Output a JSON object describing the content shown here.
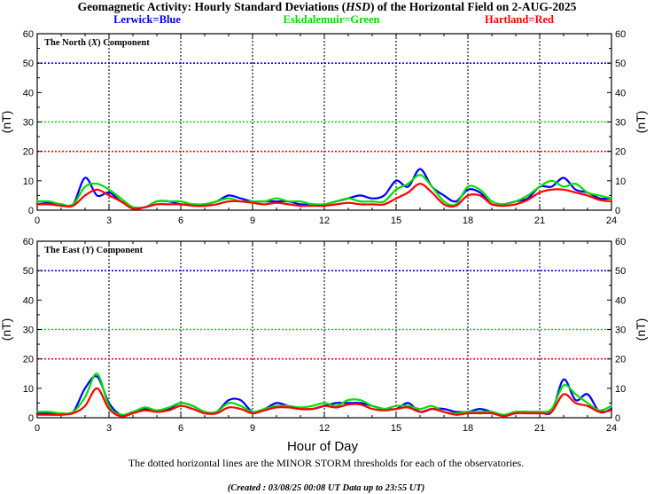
{
  "title": {
    "pre": "Geomagnetic Activity: Hourly Standard Deviations (",
    "ital": "HSD",
    "post": ") of the Horizontal Field on 2-AUG-2025"
  },
  "legend": {
    "lerwick": "Lerwick=Blue",
    "eskdalemuir": "Eskdalemuir=Green",
    "hartland": "Hartland=Red"
  },
  "colors": {
    "lerwick": "#0000ff",
    "eskdalemuir": "#00e000",
    "hartland": "#ff0000"
  },
  "xlabel": "Hour of Day",
  "footnote": "The dotted horizontal lines are the MINOR STORM thresholds for each of the observatories.",
  "created": {
    "prefix": "(Created : ",
    "time": "03/08/25 00:08",
    "mid": "UT  Data up to 23:55",
    "suffix": "UT)"
  },
  "chart_data": [
    {
      "type": "line",
      "panel_title": {
        "pre": "The North (",
        "ital": "X",
        "post": ") Component"
      },
      "ylabel": "(nT)",
      "xlim": [
        0,
        24
      ],
      "ylim": [
        0,
        60
      ],
      "xticks": [
        0,
        3,
        6,
        9,
        12,
        15,
        18,
        21,
        24
      ],
      "yticks": [
        0,
        10,
        20,
        30,
        40,
        50,
        60
      ],
      "thresholds": {
        "Lerwick": 50,
        "Eskdalemuir": 30,
        "Hartland": 20
      },
      "x": [
        0,
        0.5,
        1,
        1.5,
        2,
        2.5,
        3,
        3.5,
        4,
        4.5,
        5,
        5.5,
        6,
        6.5,
        7,
        7.5,
        8,
        8.5,
        9,
        9.5,
        10,
        10.5,
        11,
        11.5,
        12,
        12.5,
        13,
        13.5,
        14,
        14.5,
        15,
        15.5,
        16,
        16.5,
        17,
        17.5,
        18,
        18.5,
        19,
        19.5,
        20,
        20.5,
        21,
        21.5,
        22,
        22.5,
        23,
        23.5,
        24
      ],
      "series": [
        {
          "name": "Lerwick",
          "values": [
            2,
            2.5,
            2,
            2,
            11,
            5,
            6,
            3,
            1,
            1,
            3,
            3,
            2,
            2,
            2,
            3,
            5,
            4,
            3,
            3,
            3,
            3,
            2,
            2,
            2,
            3,
            4,
            5,
            4,
            5,
            10,
            8,
            14,
            8,
            5,
            3,
            7,
            6,
            2,
            2,
            3,
            4,
            8,
            8,
            11,
            7,
            6,
            4,
            4
          ]
        },
        {
          "name": "Eskdalemuir",
          "values": [
            3,
            3,
            2,
            2,
            8,
            9,
            7,
            4,
            1,
            1,
            3,
            3,
            3,
            2,
            2,
            3,
            4,
            3,
            3,
            3,
            4,
            3,
            3,
            2,
            2,
            3,
            4,
            3,
            3,
            3,
            7,
            9,
            12,
            8,
            3,
            2,
            8,
            7,
            3,
            2,
            3,
            5,
            8,
            10,
            8,
            9,
            6,
            5,
            4
          ]
        },
        {
          "name": "Hartland",
          "values": [
            2,
            2,
            1.5,
            1.5,
            5,
            7,
            5,
            3,
            0.5,
            1,
            2,
            2,
            2,
            1.5,
            1.5,
            2,
            3,
            3,
            2.5,
            2,
            2.5,
            2,
            1.5,
            1.5,
            1.5,
            2,
            2.5,
            2,
            2,
            2,
            4,
            6,
            9,
            6,
            2,
            1.5,
            5,
            5,
            2,
            1.5,
            2,
            3.5,
            6,
            7,
            7,
            6,
            5,
            3.5,
            3
          ]
        }
      ]
    },
    {
      "type": "line",
      "panel_title": {
        "pre": "The East (",
        "ital": "Y",
        "post": ") Component"
      },
      "ylabel": "(nT)",
      "xlim": [
        0,
        24
      ],
      "ylim": [
        0,
        60
      ],
      "xticks": [
        0,
        3,
        6,
        9,
        12,
        15,
        18,
        21,
        24
      ],
      "yticks": [
        0,
        10,
        20,
        30,
        40,
        50,
        60
      ],
      "thresholds": {
        "Lerwick": 50,
        "Eskdalemuir": 30,
        "Hartland": 20
      },
      "x": [
        0,
        0.5,
        1,
        1.5,
        2,
        2.5,
        3,
        3.5,
        4,
        4.5,
        5,
        5.5,
        6,
        6.5,
        7,
        7.5,
        8,
        8.5,
        9,
        9.5,
        10,
        10.5,
        11,
        11.5,
        12,
        12.5,
        13,
        13.5,
        14,
        14.5,
        15,
        15.5,
        16,
        16.5,
        17,
        17.5,
        18,
        18.5,
        19,
        19.5,
        20,
        20.5,
        21,
        21.5,
        22,
        22.5,
        23,
        23.5,
        24
      ],
      "series": [
        {
          "name": "Lerwick",
          "values": [
            1.5,
            1.5,
            1.5,
            2,
            10,
            14,
            5,
            1,
            2,
            3,
            2,
            3,
            5,
            4,
            2,
            2,
            6,
            6,
            2,
            3,
            5,
            4,
            3,
            3,
            4,
            5,
            5,
            5,
            4,
            3,
            3,
            5,
            2,
            3,
            3,
            2,
            2,
            3,
            2,
            1,
            2,
            2,
            2,
            2,
            13,
            6,
            8,
            2,
            3
          ]
        },
        {
          "name": "Eskdalemuir",
          "values": [
            2,
            2,
            1.5,
            2,
            7,
            15,
            4,
            1,
            2,
            3.5,
            2.5,
            3.5,
            5,
            4,
            2,
            2,
            5,
            4,
            2,
            3,
            4,
            4,
            3.5,
            4,
            5,
            4,
            6,
            6,
            4,
            3,
            4,
            4,
            3,
            4,
            2,
            1.5,
            2,
            2,
            2,
            1,
            2,
            2,
            2,
            3,
            11,
            8,
            5,
            2.5,
            4
          ]
        },
        {
          "name": "Hartland",
          "values": [
            1,
            1,
            1,
            1.5,
            4,
            10,
            3,
            0.5,
            1.5,
            2.5,
            2,
            2.5,
            4,
            3,
            1.5,
            1.5,
            3.5,
            3,
            1.5,
            2.5,
            3.5,
            3.5,
            3,
            3,
            4,
            3.5,
            4.5,
            4.5,
            3,
            2.5,
            3,
            3.5,
            2,
            3,
            2,
            1,
            1.5,
            1.5,
            1.5,
            0.5,
            1.5,
            1.5,
            1.5,
            2,
            8,
            5,
            4,
            2,
            2.5
          ]
        }
      ]
    }
  ]
}
